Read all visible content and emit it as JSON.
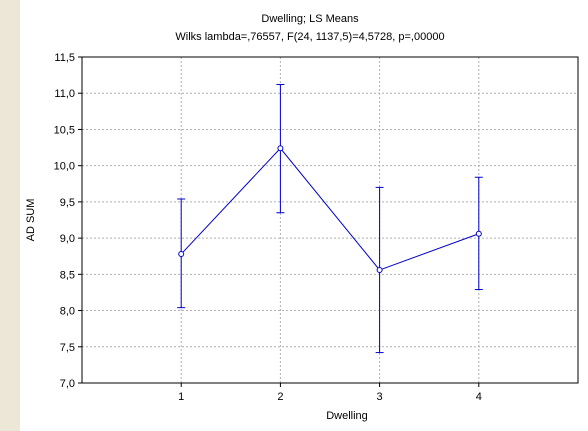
{
  "chart_data": {
    "type": "line",
    "title": "Dwelling; LS Means",
    "subtitle": "Wilks lambda=,76557, F(24, 1137,5)=4,5728, p=,00000",
    "xlabel": "Dwelling",
    "ylabel": "AD SUM",
    "categories": [
      "1",
      "2",
      "3",
      "4"
    ],
    "xlim": [
      0,
      5
    ],
    "ylim": [
      7.0,
      11.5
    ],
    "yticks": [
      "7,0",
      "7,5",
      "8,0",
      "8,5",
      "9,0",
      "9,5",
      "10,0",
      "10,5",
      "11,0",
      "11,5"
    ],
    "ytick_values": [
      7.0,
      7.5,
      8.0,
      8.5,
      9.0,
      9.5,
      10.0,
      10.5,
      11.0,
      11.5
    ],
    "grid": true,
    "series": [
      {
        "values": [
          8.78,
          10.24,
          8.56,
          9.06
        ],
        "lower": [
          8.04,
          9.35,
          7.42,
          8.29
        ],
        "upper": [
          9.54,
          11.12,
          9.7,
          9.84
        ]
      }
    ],
    "colors": {
      "line": "#0000cc",
      "grid": "#b0b0b0",
      "axis": "#000000"
    }
  }
}
